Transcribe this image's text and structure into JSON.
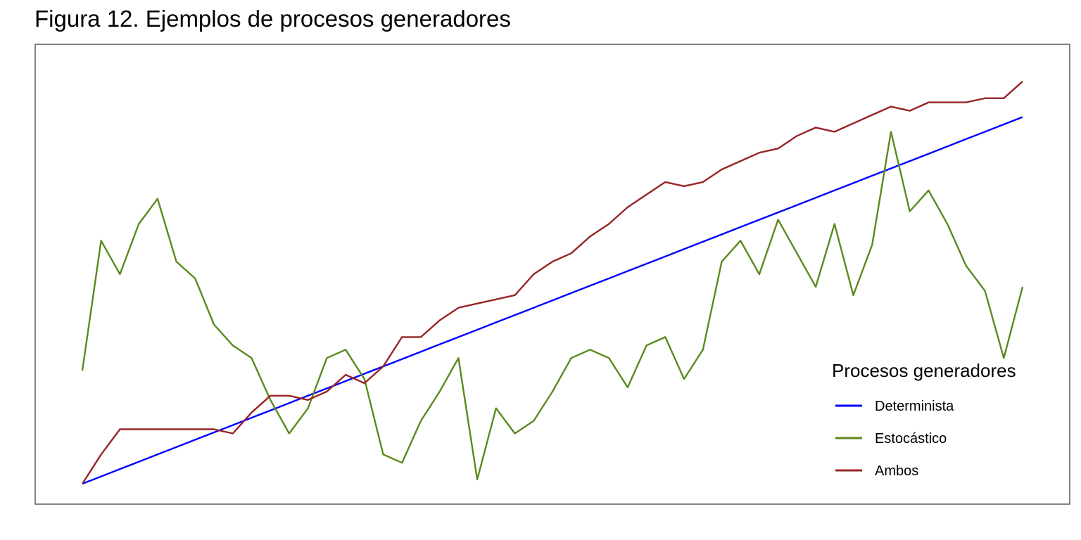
{
  "chart_data": {
    "type": "line",
    "title": "Figura 12. Ejemplos de procesos generadores",
    "xlabel": "",
    "ylabel": "",
    "axes_visible": false,
    "grid": false,
    "xlim": [
      0,
      1
    ],
    "ylim": [
      0,
      1
    ],
    "x": [
      0,
      0.02,
      0.04,
      0.06,
      0.08,
      0.1,
      0.12,
      0.14,
      0.16,
      0.18,
      0.2,
      0.22,
      0.24,
      0.26,
      0.28,
      0.3,
      0.32,
      0.34,
      0.36,
      0.38,
      0.4,
      0.42,
      0.44,
      0.46,
      0.48,
      0.5,
      0.52,
      0.54,
      0.56,
      0.58,
      0.6,
      0.62,
      0.64,
      0.66,
      0.68,
      0.7,
      0.72,
      0.74,
      0.76,
      0.78,
      0.8,
      0.82,
      0.84,
      0.86,
      0.88,
      0.9,
      0.92,
      0.94,
      0.96,
      0.98,
      1.0
    ],
    "legend": {
      "title": "Procesos generadores",
      "position": "bottom-right"
    },
    "series": [
      {
        "name": "Determinista",
        "color": "#0000ff",
        "values": [
          0.0,
          0.0175,
          0.035,
          0.0525,
          0.07,
          0.0875,
          0.105,
          0.1225,
          0.14,
          0.1575,
          0.175,
          0.1925,
          0.21,
          0.2275,
          0.245,
          0.2625,
          0.28,
          0.2975,
          0.315,
          0.3325,
          0.35,
          0.3675,
          0.385,
          0.4025,
          0.42,
          0.4375,
          0.455,
          0.4725,
          0.49,
          0.5075,
          0.525,
          0.5425,
          0.56,
          0.5775,
          0.595,
          0.6125,
          0.63,
          0.6475,
          0.665,
          0.6825,
          0.7,
          0.7175,
          0.735,
          0.7525,
          0.77,
          0.7875,
          0.805,
          0.8225,
          0.84,
          0.8575,
          0.875
        ]
      },
      {
        "name": "Estocástico",
        "color": "#5a8a1e",
        "values": [
          0.27,
          0.58,
          0.5,
          0.62,
          0.68,
          0.53,
          0.49,
          0.38,
          0.33,
          0.3,
          0.2,
          0.12,
          0.18,
          0.3,
          0.32,
          0.25,
          0.07,
          0.05,
          0.15,
          0.22,
          0.3,
          0.01,
          0.18,
          0.12,
          0.15,
          0.22,
          0.3,
          0.32,
          0.3,
          0.23,
          0.33,
          0.35,
          0.25,
          0.32,
          0.53,
          0.58,
          0.5,
          0.63,
          0.55,
          0.47,
          0.62,
          0.45,
          0.57,
          0.84,
          0.65,
          0.7,
          0.62,
          0.52,
          0.46,
          0.3,
          0.47
        ]
      },
      {
        "name": "Ambos",
        "color": "#962527",
        "values": [
          0.0,
          0.07,
          0.13,
          0.13,
          0.13,
          0.13,
          0.13,
          0.13,
          0.12,
          0.17,
          0.21,
          0.21,
          0.2,
          0.22,
          0.26,
          0.24,
          0.28,
          0.35,
          0.35,
          0.39,
          0.42,
          0.43,
          0.44,
          0.45,
          0.5,
          0.53,
          0.55,
          0.59,
          0.62,
          0.66,
          0.69,
          0.72,
          0.71,
          0.72,
          0.75,
          0.77,
          0.79,
          0.8,
          0.83,
          0.85,
          0.84,
          0.86,
          0.88,
          0.9,
          0.89,
          0.91,
          0.91,
          0.91,
          0.92,
          0.92,
          0.96
        ]
      }
    ]
  }
}
